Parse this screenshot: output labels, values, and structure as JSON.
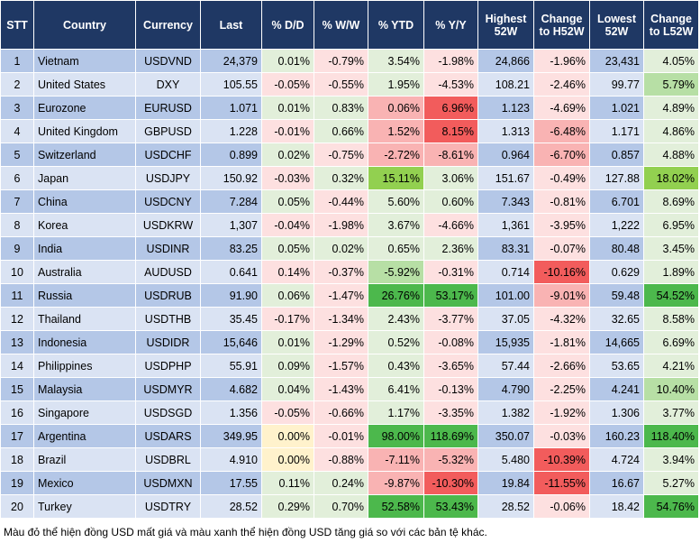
{
  "table": {
    "header": [
      "STT",
      "Country",
      "Currency",
      "Last",
      "% D/D",
      "% W/W",
      "% YTD",
      "% Y/Y",
      "Highest 52W",
      "Change to H52W",
      "Lowest 52W",
      "Change to L52W"
    ],
    "rows": [
      [
        "1",
        "Vietnam",
        "USDVND",
        "24,379",
        "0.01%",
        "-0.79%",
        "3.54%",
        "-1.98%",
        "24,866",
        "-1.96%",
        "23,431",
        "4.05%"
      ],
      [
        "2",
        "United States",
        "DXY",
        "105.55",
        "-0.05%",
        "-0.55%",
        "1.95%",
        "-4.53%",
        "108.21",
        "-2.46%",
        "99.77",
        "5.79%"
      ],
      [
        "3",
        "Eurozone",
        "EURUSD",
        "1.071",
        "0.01%",
        "0.83%",
        "0.06%",
        "6.96%",
        "1.123",
        "-4.69%",
        "1.021",
        "4.89%"
      ],
      [
        "4",
        "United Kingdom",
        "GBPUSD",
        "1.228",
        "-0.01%",
        "0.66%",
        "1.52%",
        "8.15%",
        "1.313",
        "-6.48%",
        "1.171",
        "4.86%"
      ],
      [
        "5",
        "Switzerland",
        "USDCHF",
        "0.899",
        "0.02%",
        "-0.75%",
        "-2.72%",
        "-8.61%",
        "0.964",
        "-6.70%",
        "0.857",
        "4.88%"
      ],
      [
        "6",
        "Japan",
        "USDJPY",
        "150.92",
        "-0.03%",
        "0.32%",
        "15.11%",
        "3.06%",
        "151.67",
        "-0.49%",
        "127.88",
        "18.02%"
      ],
      [
        "7",
        "China",
        "USDCNY",
        "7.284",
        "0.05%",
        "-0.44%",
        "5.60%",
        "0.60%",
        "7.343",
        "-0.81%",
        "6.701",
        "8.69%"
      ],
      [
        "8",
        "Korea",
        "USDKRW",
        "1,307",
        "-0.04%",
        "-1.98%",
        "3.67%",
        "-4.66%",
        "1,361",
        "-3.95%",
        "1,222",
        "6.95%"
      ],
      [
        "9",
        "India",
        "USDINR",
        "83.25",
        "0.05%",
        "0.02%",
        "0.65%",
        "2.36%",
        "83.31",
        "-0.07%",
        "80.48",
        "3.45%"
      ],
      [
        "10",
        "Australia",
        "AUDUSD",
        "0.641",
        "0.14%",
        "-0.37%",
        "-5.92%",
        "-0.31%",
        "0.714",
        "-10.16%",
        "0.629",
        "1.89%"
      ],
      [
        "11",
        "Russia",
        "USDRUB",
        "91.90",
        "0.06%",
        "-1.47%",
        "26.76%",
        "53.17%",
        "101.00",
        "-9.01%",
        "59.48",
        "54.52%"
      ],
      [
        "12",
        "Thailand",
        "USDTHB",
        "35.45",
        "-0.17%",
        "-1.34%",
        "2.43%",
        "-3.77%",
        "37.05",
        "-4.32%",
        "32.65",
        "8.58%"
      ],
      [
        "13",
        "Indonesia",
        "USDIDR",
        "15,646",
        "0.01%",
        "-1.29%",
        "0.52%",
        "-0.08%",
        "15,935",
        "-1.81%",
        "14,665",
        "6.69%"
      ],
      [
        "14",
        "Philippines",
        "USDPHP",
        "55.91",
        "0.09%",
        "-1.57%",
        "0.43%",
        "-3.65%",
        "57.44",
        "-2.66%",
        "53.65",
        "4.21%"
      ],
      [
        "15",
        "Malaysia",
        "USDMYR",
        "4.682",
        "0.04%",
        "-1.43%",
        "6.41%",
        "-0.13%",
        "4.790",
        "-2.25%",
        "4.241",
        "10.40%"
      ],
      [
        "16",
        "Singapore",
        "USDSGD",
        "1.356",
        "-0.05%",
        "-0.66%",
        "1.17%",
        "-3.35%",
        "1.382",
        "-1.92%",
        "1.306",
        "3.77%"
      ],
      [
        "17",
        "Argentina",
        "USDARS",
        "349.95",
        "0.00%",
        "-0.01%",
        "98.00%",
        "118.69%",
        "350.07",
        "-0.03%",
        "160.23",
        "118.40%"
      ],
      [
        "18",
        "Brazil",
        "USDBRL",
        "4.910",
        "0.00%",
        "-0.88%",
        "-7.11%",
        "-5.32%",
        "5.480",
        "-10.39%",
        "4.724",
        "3.94%"
      ],
      [
        "19",
        "Mexico",
        "USDMXN",
        "17.55",
        "0.11%",
        "0.24%",
        "-9.87%",
        "-10.30%",
        "19.84",
        "-11.55%",
        "16.67",
        "5.27%"
      ],
      [
        "20",
        "Turkey",
        "USDTRY",
        "28.52",
        "0.29%",
        "0.70%",
        "52.58%",
        "53.43%",
        "28.52",
        "-0.06%",
        "18.42",
        "54.76%"
      ]
    ],
    "fills": [
      [
        "#e2efda",
        "#fde0e0",
        "#e2efda",
        "#fde0e0",
        "#fde0e0",
        "#e2efda"
      ],
      [
        "#fde0e0",
        "#fde0e0",
        "#e2efda",
        "#fde0e0",
        "#fde0e0",
        "#b7dfa5"
      ],
      [
        "#e2efda",
        "#e2efda",
        "#f9b3b3",
        "#f25c5c",
        "#fde0e0",
        "#e2efda"
      ],
      [
        "#fde0e0",
        "#e2efda",
        "#f9b3b3",
        "#f25c5c",
        "#f9b3b3",
        "#e2efda"
      ],
      [
        "#e2efda",
        "#fde0e0",
        "#f9b3b3",
        "#f9b3b3",
        "#f9b3b3",
        "#e2efda"
      ],
      [
        "#fde0e0",
        "#e2efda",
        "#92d050",
        "#e2efda",
        "#fde0e0",
        "#92d050"
      ],
      [
        "#e2efda",
        "#fde0e0",
        "#e2efda",
        "#e2efda",
        "#fde0e0",
        "#e2efda"
      ],
      [
        "#fde0e0",
        "#fde0e0",
        "#e2efda",
        "#fde0e0",
        "#fde0e0",
        "#e2efda"
      ],
      [
        "#e2efda",
        "#e2efda",
        "#e2efda",
        "#e2efda",
        "#fde0e0",
        "#e2efda"
      ],
      [
        "#fde0e0",
        "#fde0e0",
        "#b7dfa5",
        "#fde0e0",
        "#f25c5c",
        "#e2efda"
      ],
      [
        "#e2efda",
        "#fde0e0",
        "#4cb84c",
        "#4cb84c",
        "#f9b3b3",
        "#4cb84c"
      ],
      [
        "#fde0e0",
        "#fde0e0",
        "#e2efda",
        "#fde0e0",
        "#fde0e0",
        "#e2efda"
      ],
      [
        "#e2efda",
        "#fde0e0",
        "#e2efda",
        "#fde0e0",
        "#fde0e0",
        "#e2efda"
      ],
      [
        "#e2efda",
        "#fde0e0",
        "#e2efda",
        "#fde0e0",
        "#fde0e0",
        "#e2efda"
      ],
      [
        "#e2efda",
        "#fde0e0",
        "#e2efda",
        "#fde0e0",
        "#fde0e0",
        "#b7dfa5"
      ],
      [
        "#fde0e0",
        "#fde0e0",
        "#e2efda",
        "#fde0e0",
        "#fde0e0",
        "#e2efda"
      ],
      [
        "#fff2cc",
        "#fde0e0",
        "#4cb84c",
        "#4cb84c",
        "#fde0e0",
        "#4cb84c"
      ],
      [
        "#fff2cc",
        "#fde0e0",
        "#f9b3b3",
        "#f9b3b3",
        "#f25c5c",
        "#e2efda"
      ],
      [
        "#e2efda",
        "#e2efda",
        "#f9b3b3",
        "#f25c5c",
        "#f25c5c",
        "#e2efda"
      ],
      [
        "#e2efda",
        "#e2efda",
        "#4cb84c",
        "#4cb84c",
        "#fde0e0",
        "#4cb84c"
      ]
    ]
  },
  "footnote": "Màu đỏ thể hiện đồng USD mất giá và màu xanh thể hiện đồng USD tăng giá so với các bản tệ khác."
}
